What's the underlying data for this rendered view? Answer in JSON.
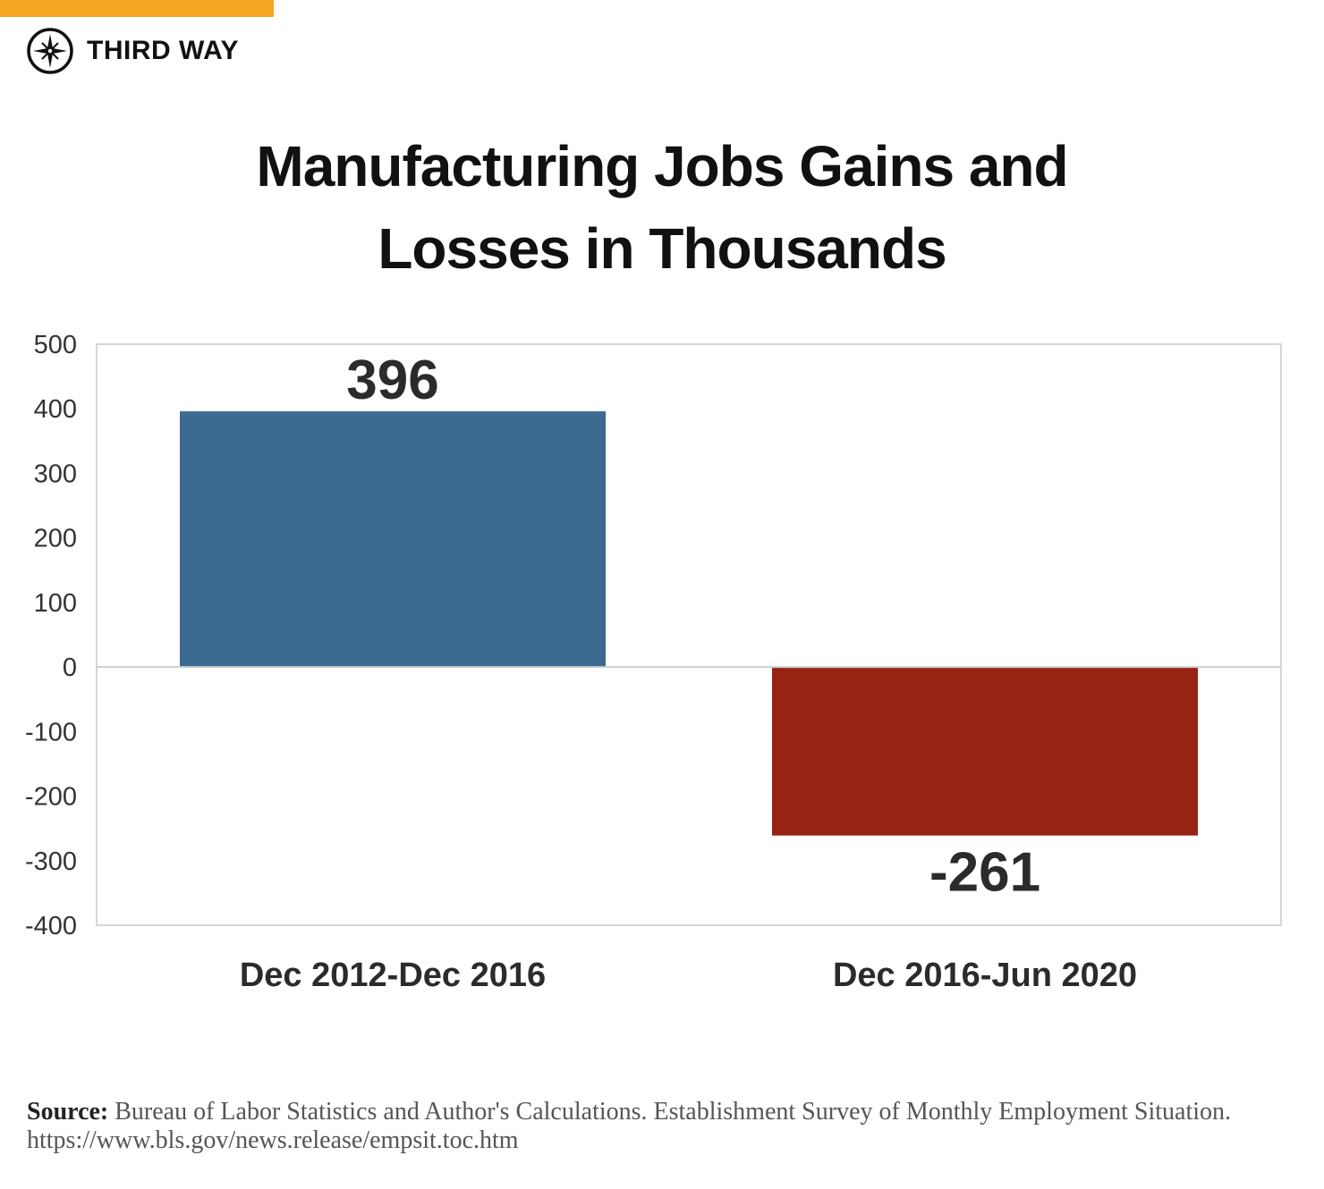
{
  "brand": {
    "name": "THIRD WAY",
    "logo_icon": "compass-star-icon",
    "accent_color": "#F5A623"
  },
  "chart_data": {
    "type": "bar",
    "title": "Manufacturing Jobs Gains and Losses in Thousands",
    "title_lines": [
      "Manufacturing Jobs Gains and",
      "Losses in Thousands"
    ],
    "categories": [
      "Dec 2012-Dec 2016",
      "Dec 2016-Jun 2020"
    ],
    "values": [
      396,
      -261
    ],
    "data_labels": [
      "396",
      "-261"
    ],
    "colors": [
      "#3D6A90",
      "#972312"
    ],
    "xlabel": "",
    "ylabel": "",
    "ylim": [
      -400,
      500
    ],
    "yticks": [
      500,
      400,
      300,
      200,
      100,
      0,
      -100,
      -200,
      -300,
      -400
    ],
    "grid": false
  },
  "source": {
    "label": "Source:",
    "text": "Bureau of Labor Statistics and Author's Calculations. Establishment Survey of Monthly Employment Situation. https://www.bls.gov/news.release/empsit.toc.htm"
  }
}
